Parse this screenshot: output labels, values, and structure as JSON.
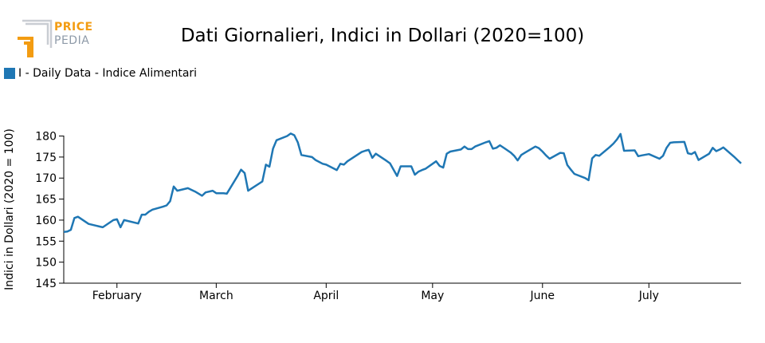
{
  "logo": {
    "line1": "PRICE",
    "line2": "PEDIA",
    "colors": {
      "orange": "#f39c12",
      "gray": "#b8bec6"
    }
  },
  "chart_data": {
    "type": "line",
    "title": "Dati Giornalieri, Indici in Dollari (2020=100)",
    "xlabel": "",
    "ylabel": "Indici in Dollari (2020 = 100)",
    "xlim": [
      "2022-01-17",
      "2022-07-27"
    ],
    "ylim": [
      145,
      182
    ],
    "yticks": [
      145,
      150,
      155,
      160,
      165,
      170,
      175,
      180
    ],
    "xticks": [
      {
        "date": "2022-02-01",
        "label": "February"
      },
      {
        "date": "2022-03-01",
        "label": "March"
      },
      {
        "date": "2022-04-01",
        "label": "April"
      },
      {
        "date": "2022-05-01",
        "label": "May"
      },
      {
        "date": "2022-06-01",
        "label": "June"
      },
      {
        "date": "2022-07-01",
        "label": "July"
      }
    ],
    "legend_position": "top-left",
    "grid": false,
    "series": [
      {
        "name": "I - Daily Data - Indice Alimentari",
        "color": "#1f77b4",
        "points": [
          [
            "2022-01-17",
            157.2
          ],
          [
            "2022-01-18",
            157.3
          ],
          [
            "2022-01-19",
            157.7
          ],
          [
            "2022-01-20",
            160.5
          ],
          [
            "2022-01-21",
            160.8
          ],
          [
            "2022-01-24",
            159.1
          ],
          [
            "2022-01-26",
            158.7
          ],
          [
            "2022-01-27",
            158.5
          ],
          [
            "2022-01-28",
            158.3
          ],
          [
            "2022-01-31",
            160.0
          ],
          [
            "2022-02-01",
            160.2
          ],
          [
            "2022-02-02",
            158.3
          ],
          [
            "2022-02-03",
            160.0
          ],
          [
            "2022-02-07",
            159.2
          ],
          [
            "2022-02-08",
            161.3
          ],
          [
            "2022-02-09",
            161.3
          ],
          [
            "2022-02-10",
            162.0
          ],
          [
            "2022-02-11",
            162.5
          ],
          [
            "2022-02-14",
            163.2
          ],
          [
            "2022-02-15",
            163.5
          ],
          [
            "2022-02-16",
            164.5
          ],
          [
            "2022-02-17",
            168.0
          ],
          [
            "2022-02-18",
            167.0
          ],
          [
            "2022-02-21",
            167.6
          ],
          [
            "2022-02-22",
            167.2
          ],
          [
            "2022-02-23",
            166.8
          ],
          [
            "2022-02-24",
            166.3
          ],
          [
            "2022-02-25",
            165.8
          ],
          [
            "2022-02-26",
            166.6
          ],
          [
            "2022-02-28",
            167.0
          ],
          [
            "2022-03-01",
            166.4
          ],
          [
            "2022-03-03",
            166.4
          ],
          [
            "2022-03-04",
            166.3
          ],
          [
            "2022-03-07",
            170.5
          ],
          [
            "2022-03-08",
            172.0
          ],
          [
            "2022-03-09",
            171.2
          ],
          [
            "2022-03-10",
            167.0
          ],
          [
            "2022-03-14",
            169.2
          ],
          [
            "2022-03-15",
            173.2
          ],
          [
            "2022-03-16",
            172.7
          ],
          [
            "2022-03-17",
            177.0
          ],
          [
            "2022-03-18",
            179.0
          ],
          [
            "2022-03-21",
            180.0
          ],
          [
            "2022-03-22",
            180.6
          ],
          [
            "2022-03-23",
            180.2
          ],
          [
            "2022-03-24",
            178.5
          ],
          [
            "2022-03-25",
            175.5
          ],
          [
            "2022-03-28",
            175.0
          ],
          [
            "2022-03-29",
            174.3
          ],
          [
            "2022-03-31",
            173.4
          ],
          [
            "2022-04-01",
            173.2
          ],
          [
            "2022-04-04",
            171.9
          ],
          [
            "2022-04-05",
            173.4
          ],
          [
            "2022-04-06",
            173.2
          ],
          [
            "2022-04-07",
            174.0
          ],
          [
            "2022-04-11",
            176.2
          ],
          [
            "2022-04-12",
            176.5
          ],
          [
            "2022-04-13",
            176.7
          ],
          [
            "2022-04-14",
            174.8
          ],
          [
            "2022-04-15",
            175.8
          ],
          [
            "2022-04-18",
            174.1
          ],
          [
            "2022-04-19",
            173.5
          ],
          [
            "2022-04-21",
            170.5
          ],
          [
            "2022-04-22",
            172.8
          ],
          [
            "2022-04-25",
            172.8
          ],
          [
            "2022-04-26",
            170.8
          ],
          [
            "2022-04-27",
            171.5
          ],
          [
            "2022-04-28",
            171.9
          ],
          [
            "2022-04-29",
            172.2
          ],
          [
            "2022-05-02",
            174.0
          ],
          [
            "2022-05-03",
            172.9
          ],
          [
            "2022-05-04",
            172.5
          ],
          [
            "2022-05-05",
            175.8
          ],
          [
            "2022-05-06",
            176.3
          ],
          [
            "2022-05-09",
            176.8
          ],
          [
            "2022-05-10",
            177.5
          ],
          [
            "2022-05-11",
            176.9
          ],
          [
            "2022-05-12",
            176.9
          ],
          [
            "2022-05-13",
            177.5
          ],
          [
            "2022-05-16",
            178.5
          ],
          [
            "2022-05-17",
            178.8
          ],
          [
            "2022-05-18",
            177.0
          ],
          [
            "2022-05-19",
            177.2
          ],
          [
            "2022-05-20",
            177.8
          ],
          [
            "2022-05-23",
            176.1
          ],
          [
            "2022-05-24",
            175.3
          ],
          [
            "2022-05-25",
            174.2
          ],
          [
            "2022-05-26",
            175.5
          ],
          [
            "2022-05-27",
            176.0
          ],
          [
            "2022-05-30",
            177.5
          ],
          [
            "2022-05-31",
            177.1
          ],
          [
            "2022-06-01",
            176.3
          ],
          [
            "2022-06-02",
            175.4
          ],
          [
            "2022-06-03",
            174.6
          ],
          [
            "2022-06-06",
            176.0
          ],
          [
            "2022-06-07",
            175.9
          ],
          [
            "2022-06-08",
            173.1
          ],
          [
            "2022-06-09",
            172.0
          ],
          [
            "2022-06-10",
            171.0
          ],
          [
            "2022-06-13",
            170.0
          ],
          [
            "2022-06-14",
            169.5
          ],
          [
            "2022-06-15",
            174.7
          ],
          [
            "2022-06-16",
            175.5
          ],
          [
            "2022-06-17",
            175.3
          ],
          [
            "2022-06-20",
            177.4
          ],
          [
            "2022-06-21",
            178.2
          ],
          [
            "2022-06-22",
            179.2
          ],
          [
            "2022-06-23",
            180.5
          ],
          [
            "2022-06-24",
            176.5
          ],
          [
            "2022-06-27",
            176.6
          ],
          [
            "2022-06-28",
            175.2
          ],
          [
            "2022-06-29",
            175.4
          ],
          [
            "2022-07-01",
            175.7
          ],
          [
            "2022-07-04",
            174.6
          ],
          [
            "2022-07-05",
            175.3
          ],
          [
            "2022-07-06",
            177.2
          ],
          [
            "2022-07-07",
            178.4
          ],
          [
            "2022-07-08",
            178.5
          ],
          [
            "2022-07-11",
            178.6
          ],
          [
            "2022-07-12",
            175.9
          ],
          [
            "2022-07-13",
            175.7
          ],
          [
            "2022-07-14",
            176.2
          ],
          [
            "2022-07-15",
            174.3
          ],
          [
            "2022-07-18",
            175.8
          ],
          [
            "2022-07-19",
            177.2
          ],
          [
            "2022-07-20",
            176.4
          ],
          [
            "2022-07-21",
            176.8
          ],
          [
            "2022-07-22",
            177.3
          ],
          [
            "2022-07-25",
            175.1
          ],
          [
            "2022-07-26",
            174.3
          ],
          [
            "2022-07-27",
            173.5
          ]
        ]
      }
    ]
  }
}
